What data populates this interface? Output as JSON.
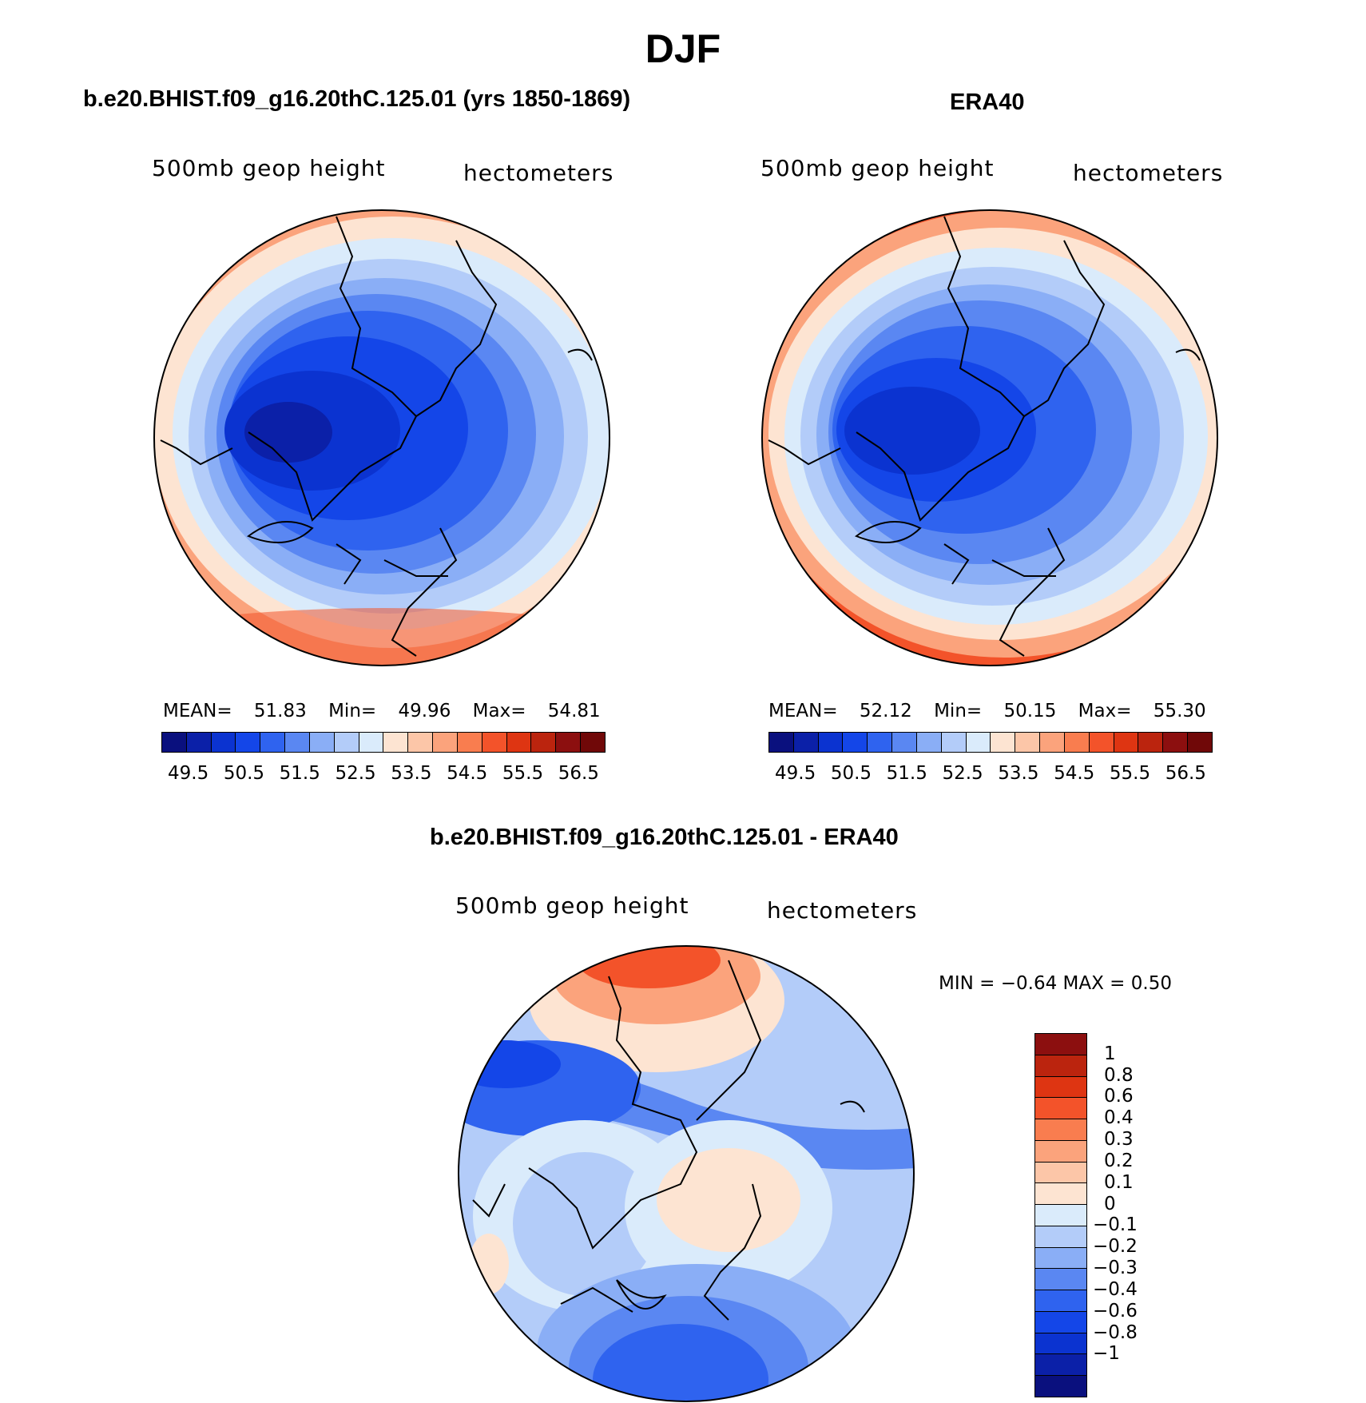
{
  "title": "DJF",
  "panel_left": {
    "title": "b.e20.BHIST.f09_g16.20thC.125.01 (yrs 1850-1869)",
    "variable_label": "500mb geop height",
    "units_label": "hectometers",
    "stats": {
      "mean_label": "MEAN=",
      "mean": "51.83",
      "min_label": "Min=",
      "min": "49.96",
      "max_label": "Max=",
      "max": "54.81"
    }
  },
  "panel_right": {
    "title": "ERA40",
    "variable_label": "500mb geop height",
    "units_label": "hectometers",
    "stats": {
      "mean_label": "MEAN=",
      "mean": "52.12",
      "min_label": "Min=",
      "min": "50.15",
      "max_label": "Max=",
      "max": "55.30"
    }
  },
  "panel_diff": {
    "title": "b.e20.BHIST.f09_g16.20thC.125.01 - ERA40",
    "variable_label": "500mb geop height",
    "units_label": "hectometers",
    "stats_text": "MIN =   −0.64 MAX =    0.50"
  },
  "colorbar_main": {
    "colors": [
      "#0a107e",
      "#0b20a8",
      "#0b33d0",
      "#1446e8",
      "#2f63ef",
      "#5a87f2",
      "#8aaef6",
      "#b3ccf9",
      "#daebfb",
      "#fde4d2",
      "#fcc6a8",
      "#fba37c",
      "#f97d4f",
      "#f3532a",
      "#de3512",
      "#bb240e",
      "#8c0f0f",
      "#700808"
    ],
    "tick_labels": [
      "49.5",
      "50.5",
      "51.5",
      "52.5",
      "53.5",
      "54.5",
      "55.5",
      "56.5"
    ]
  },
  "colorbar_diff": {
    "colors": [
      "#8c0f0f",
      "#bb240e",
      "#de3512",
      "#f3532a",
      "#f97d4f",
      "#fba37c",
      "#fcc6a8",
      "#fde4d2",
      "#daebfb",
      "#b3ccf9",
      "#8aaef6",
      "#5a87f2",
      "#2f63ef",
      "#1446e8",
      "#0b33d0",
      "#0b20a8",
      "#0a107e"
    ],
    "tick_labels": [
      "1",
      "0.8",
      "0.6",
      "0.4",
      "0.3",
      "0.2",
      "0.1",
      "0",
      "−0.1",
      "−0.2",
      "−0.3",
      "−0.4",
      "−0.6",
      "−0.8",
      "−1"
    ]
  },
  "map_fills": {
    "warm_far": "#f3532a",
    "warm_mid": "#fba37c",
    "warm_light": "#fde4d2",
    "cool_light": "#daebfb",
    "cool_1": "#b3ccf9",
    "cool_2": "#8aaef6",
    "cool_3": "#5a87f2",
    "cool_4": "#2f63ef",
    "cool_5": "#1446e8",
    "cool_6": "#0b33d0",
    "cool_7": "#0b20a8"
  }
}
